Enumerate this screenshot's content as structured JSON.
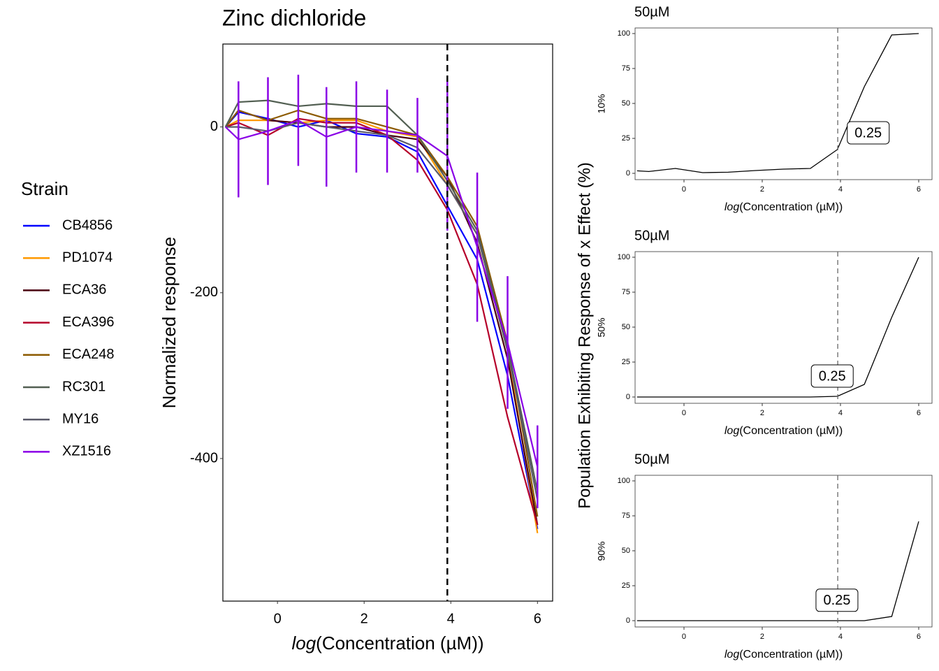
{
  "shared_y_label": "Population Exhibiting Response of x Effect (%)",
  "legend_title": "Strain",
  "chart_data": [
    {
      "type": "line",
      "title": "Zinc dichloride",
      "x_label_func": "log",
      "x_label": "(Concentration (µM))",
      "y_label": "Normalized response",
      "x": [
        -1.2,
        -0.9,
        -0.22,
        0.48,
        1.13,
        1.82,
        2.53,
        3.23,
        3.92,
        4.61,
        5.31,
        6.0
      ],
      "xlim": [
        -1.26,
        6.35
      ],
      "ylim": [
        -572,
        100
      ],
      "xticks": [
        0,
        2,
        4,
        6
      ],
      "yticks": [
        0,
        -200,
        -400
      ],
      "vline": 3.92,
      "series": [
        {
          "name": "CB4856",
          "color": "#0000ff",
          "values": [
            0,
            18,
            10,
            0,
            8,
            -8,
            -12,
            -30,
            -95,
            -160,
            -300,
            -485
          ]
        },
        {
          "name": "PD1074",
          "color": "#ff9900",
          "values": [
            0,
            8,
            8,
            5,
            8,
            8,
            -5,
            -12,
            -70,
            -130,
            -270,
            -490
          ]
        },
        {
          "name": "ECA36",
          "color": "#4a0010",
          "values": [
            0,
            20,
            8,
            5,
            0,
            0,
            -10,
            -15,
            -60,
            -140,
            -280,
            -480
          ]
        },
        {
          "name": "ECA396",
          "color": "#b5002a",
          "values": [
            0,
            5,
            -10,
            10,
            5,
            5,
            -10,
            -40,
            -100,
            -190,
            -350,
            -480
          ]
        },
        {
          "name": "ECA248",
          "color": "#8c5a00",
          "values": [
            0,
            20,
            8,
            20,
            10,
            10,
            0,
            -10,
            -60,
            -120,
            -260,
            -470
          ]
        },
        {
          "name": "RC301",
          "color": "#525f52",
          "values": [
            0,
            30,
            32,
            25,
            28,
            25,
            25,
            -10,
            -65,
            -125,
            -265,
            -440
          ]
        },
        {
          "name": "MY16",
          "color": "#5a5a6a",
          "values": [
            0,
            0,
            -5,
            5,
            0,
            -5,
            -10,
            -25,
            -70,
            -130,
            -270,
            -450
          ]
        },
        {
          "name": "XZ1516",
          "color": "#8a00e6",
          "values": [
            0,
            -15,
            -5,
            8,
            -12,
            0,
            -5,
            -10,
            -35,
            -145,
            -260,
            -410
          ],
          "errors": [
            0,
            70,
            65,
            55,
            60,
            55,
            50,
            45,
            90,
            90,
            80,
            50
          ]
        }
      ]
    },
    {
      "type": "line",
      "title": "50µM",
      "x_label_func": "log",
      "x_label": "(Concentration (µM))",
      "y_label": "10%",
      "x": [
        -1.2,
        -0.9,
        -0.22,
        0.48,
        1.13,
        1.82,
        2.53,
        3.23,
        3.92,
        4.61,
        5.31,
        6.0
      ],
      "xlim": [
        -1.25,
        6.34
      ],
      "ylim": [
        -4.5,
        104
      ],
      "xticks": [
        0,
        2,
        4,
        6
      ],
      "yticks": [
        0,
        25,
        50,
        75,
        100
      ],
      "vline": 3.93,
      "annotation": {
        "x": 4.71,
        "y": 29,
        "label": "0.25"
      },
      "series": [
        {
          "color": "#000000",
          "values": [
            1.8,
            1.3,
            3.5,
            0.5,
            0.8,
            2,
            3,
            3.5,
            17,
            62,
            99,
            100
          ]
        }
      ]
    },
    {
      "type": "line",
      "title": "50µM",
      "x_label_func": "log",
      "x_label": "(Concentration (µM))",
      "y_label": "50%",
      "x": [
        -1.2,
        -0.9,
        -0.22,
        0.48,
        1.13,
        1.82,
        2.53,
        3.23,
        3.92,
        4.61,
        5.31,
        6.0
      ],
      "xlim": [
        -1.25,
        6.34
      ],
      "ylim": [
        -4.5,
        104
      ],
      "xticks": [
        0,
        2,
        4,
        6
      ],
      "yticks": [
        0,
        25,
        50,
        75,
        100
      ],
      "vline": 3.93,
      "annotation": {
        "x": 3.79,
        "y": 15,
        "label": "0.25"
      },
      "series": [
        {
          "color": "#000000",
          "values": [
            0,
            0,
            0,
            0,
            0,
            0,
            0,
            0,
            0.5,
            9,
            57,
            100
          ]
        }
      ]
    },
    {
      "type": "line",
      "title": "50µM",
      "x_label_func": "log",
      "x_label": "(Concentration (µM))",
      "y_label": "90%",
      "x": [
        -1.2,
        -0.9,
        -0.22,
        0.48,
        1.13,
        1.82,
        2.53,
        3.23,
        3.92,
        4.61,
        5.31,
        6.0
      ],
      "xlim": [
        -1.25,
        6.34
      ],
      "ylim": [
        -4.5,
        104
      ],
      "xticks": [
        0,
        2,
        4,
        6
      ],
      "yticks": [
        0,
        25,
        50,
        75,
        100
      ],
      "vline": 3.93,
      "annotation": {
        "x": 3.91,
        "y": 14.6,
        "label": "0.25"
      },
      "series": [
        {
          "color": "#000000",
          "values": [
            0,
            0,
            0,
            0,
            0,
            0,
            0,
            0,
            0,
            0,
            3,
            71
          ]
        }
      ]
    }
  ]
}
